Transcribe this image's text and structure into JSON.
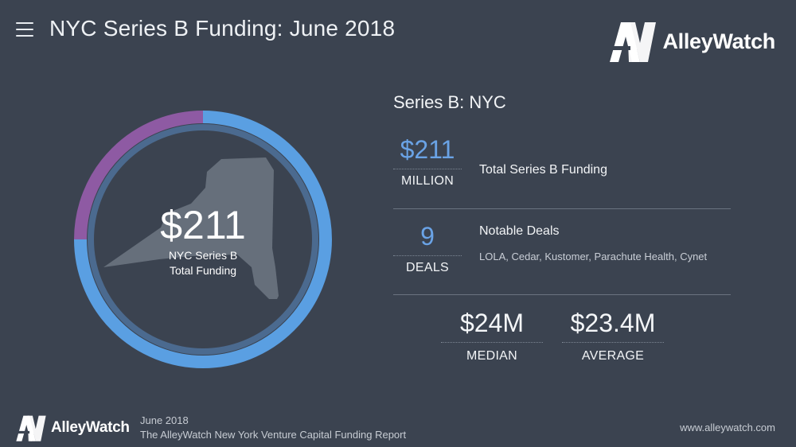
{
  "header": {
    "title": "NYC Series B Funding: June 2018",
    "logo_text": "AlleyWatch",
    "icons": [
      "hamburger-menu-icon",
      "alleywatch-logo-icon"
    ]
  },
  "donut": {
    "value": "$211",
    "label_line1": "NYC Series B",
    "label_line2": "Total Funding"
  },
  "chart_data": {
    "type": "pie",
    "variant": "donut",
    "title": "",
    "slices": [
      {
        "value": 0.75,
        "color": "#5a9fe2"
      },
      {
        "value": 0.25,
        "color": "#8e5aa3"
      }
    ],
    "center_text": [
      "$211",
      "NYC Series B",
      "Total Funding"
    ]
  },
  "panel": {
    "title": "Series B: NYC",
    "total": {
      "value": "$211",
      "unit": "MILLION",
      "caption": "Total Series B Funding"
    },
    "deals": {
      "value": "9",
      "unit": "DEALS",
      "caption": "Notable Deals",
      "list": "LOLA, Cedar, Kustomer, Parachute Health, Cynet"
    },
    "median": {
      "value": "$24M",
      "label": "MEDIAN"
    },
    "average": {
      "value": "$23.4M",
      "label": "AVERAGE"
    }
  },
  "footer": {
    "logo_text": "AlleyWatch",
    "date": "June 2018",
    "report": "The AlleyWatch New York Venture Capital Funding Report",
    "url": "www.alleywatch.com"
  },
  "colors": {
    "background": "#3b4350",
    "accent_blue": "#5a9fe2",
    "accent_purple": "#8e5aa3",
    "stat_blue": "#6aa3e6"
  }
}
